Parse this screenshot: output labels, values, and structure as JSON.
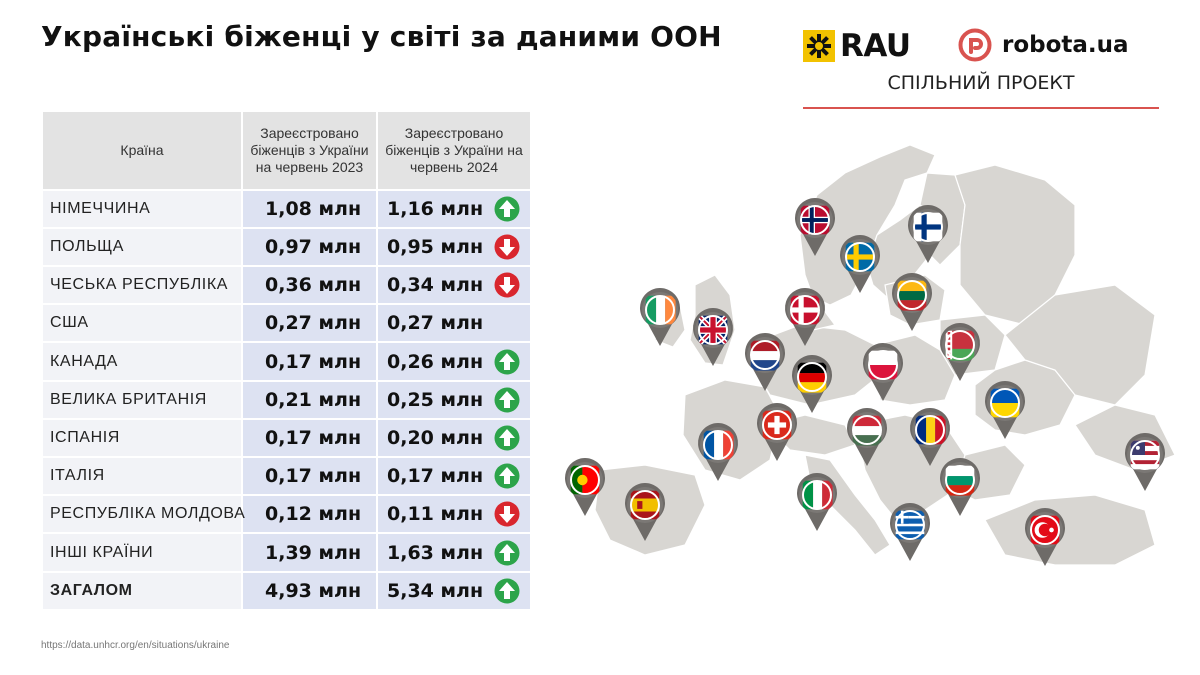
{
  "title": "Українські біженці у світі за даними ООН",
  "brand": {
    "rau": "RAU",
    "robota": "robota.ua",
    "joint": "СПІЛЬНИЙ ПРОЕКТ"
  },
  "table": {
    "headers": {
      "country": "Країна",
      "y2023": "Зареєстровано біженців з України на червень 2023",
      "y2024": "Зареєстровано біженців з України на червень 2024"
    },
    "rows": [
      {
        "country": "НІМЕЧЧИНА",
        "v2023": "1,08 млн",
        "v2024": "1,16 млн",
        "trend": "up"
      },
      {
        "country": "ПОЛЬЩА",
        "v2023": "0,97 млн",
        "v2024": "0,95 млн",
        "trend": "down"
      },
      {
        "country": "ЧЕСЬКА РЕСПУБЛІКА",
        "v2023": "0,36 млн",
        "v2024": "0,34 млн",
        "trend": "down"
      },
      {
        "country": "США",
        "v2023": "0,27 млн",
        "v2024": "0,27 млн",
        "trend": "none"
      },
      {
        "country": "КАНАДА",
        "v2023": "0,17 млн",
        "v2024": "0,26 млн",
        "trend": "up"
      },
      {
        "country": "ВЕЛИКА БРИТАНІЯ",
        "v2023": "0,21 млн",
        "v2024": "0,25 млн",
        "trend": "up"
      },
      {
        "country": "ІСПАНІЯ",
        "v2023": "0,17 млн",
        "v2024": "0,20 млн",
        "trend": "up"
      },
      {
        "country": "ІТАЛІЯ",
        "v2023": "0,17 млн",
        "v2024": "0,17 млн",
        "trend": "up"
      },
      {
        "country": "РЕСПУБЛІКА МОЛДОВА",
        "v2023": "0,12 млн",
        "v2024": "0,11 млн",
        "trend": "down"
      }
    ],
    "other": {
      "country": "ІНШІ КРАЇНИ",
      "v2023": "1,39 млн",
      "v2024": "1,63 млн",
      "trend": "up"
    },
    "total": {
      "country": "ЗАГАЛОМ",
      "v2023": "4,93 млн",
      "v2024": "5,34 млн",
      "trend": "up"
    }
  },
  "source": "https://data.unhcr.org/en/situations/ukraine",
  "map_flags": [
    "norway",
    "finland",
    "sweden",
    "lithuania",
    "ireland",
    "denmark",
    "united-kingdom",
    "netherlands",
    "belarus",
    "poland",
    "germany",
    "ukraine",
    "switzerland",
    "france",
    "hungary",
    "romania",
    "moldova",
    "bulgaria",
    "portugal",
    "spain",
    "italy",
    "greece",
    "turkey"
  ],
  "colors": {
    "up": "#2ca44a",
    "down": "#d9262e",
    "map_land": "#d8d6d2",
    "header_bg": "#e3e3e3",
    "value_bg": "#dde2f2",
    "brand_line": "#d9534f",
    "rau_yellow": "#f2c200"
  }
}
